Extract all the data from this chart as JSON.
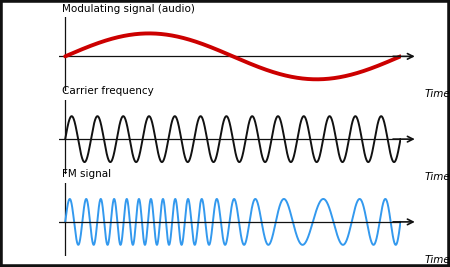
{
  "panel1_label": "Modulating signal (audio)",
  "panel2_label": "Carrier frequency",
  "panel3_label": "FM signal",
  "time_label": "Time",
  "modulating_color": "#cc0000",
  "carrier_color": "#111111",
  "fm_color": "#3399ee",
  "background_color": "#ffffff",
  "border_color": "#111111",
  "axis_color": "#111111",
  "modulating_freq": 1.0,
  "carrier_freq": 13.0,
  "fm_carrier_freq": 18.0,
  "fm_mod_index": 10.0,
  "modulating_lw": 2.8,
  "carrier_lw": 1.4,
  "fm_lw": 1.4,
  "label_fontsize": 7.5,
  "time_fontsize": 7.5
}
